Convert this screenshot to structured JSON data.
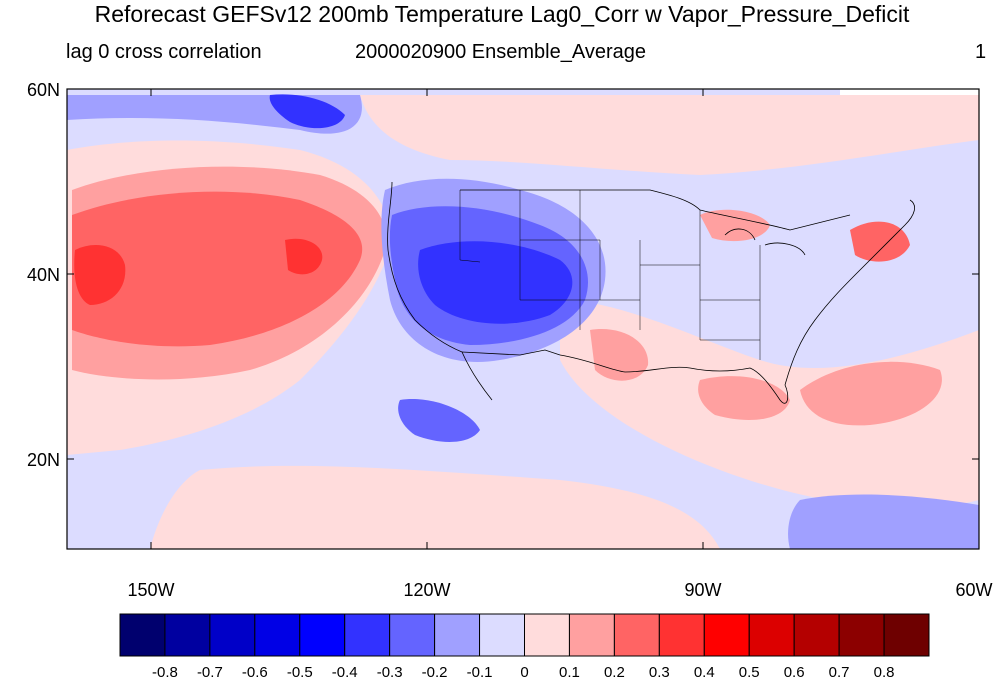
{
  "title": "Reforecast GEFSv12 200mb Temperature Lag0_Corr w Vapor_Pressure_Deficit",
  "subtitle_left": "lag 0 cross correlation",
  "subtitle_center": "2000020900 Ensemble_Average",
  "subtitle_right": "1",
  "lat_labels": [
    "60N",
    "40N",
    "20N"
  ],
  "lon_labels": [
    "150W",
    "120W",
    "90W",
    "60W"
  ],
  "colorbar": {
    "labels": [
      "-0.8",
      "-0.7",
      "-0.6",
      "-0.5",
      "-0.4",
      "-0.3",
      "-0.2",
      "-0.1",
      "0",
      "0.1",
      "0.2",
      "0.3",
      "0.4",
      "0.5",
      "0.6",
      "0.7",
      "0.8"
    ],
    "colors": [
      "#00006e",
      "#0000a0",
      "#0000c8",
      "#0000e6",
      "#0000ff",
      "#3232ff",
      "#6464ff",
      "#a0a0ff",
      "#dcdcff",
      "#ffdcdc",
      "#ffa0a0",
      "#ff6464",
      "#ff3232",
      "#ff0000",
      "#dc0000",
      "#b40000",
      "#8c0000",
      "#6e0000"
    ]
  }
}
